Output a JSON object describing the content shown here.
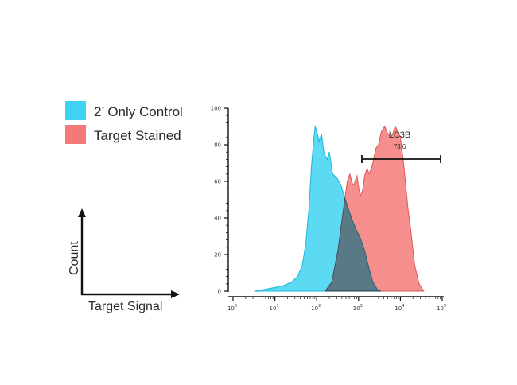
{
  "legend": [
    {
      "label": "2’ Only Control",
      "color": "#3fd3f1"
    },
    {
      "label": "Target Stained",
      "color": "#f47a7a"
    }
  ],
  "schematic": {
    "ylabel": "Count",
    "xlabel": "Target Signal"
  },
  "chart_data": {
    "type": "area",
    "xscale": "log",
    "xlim": [
      1,
      100000
    ],
    "ylim": [
      0,
      100
    ],
    "xticks": [
      {
        "base": "10",
        "exp": "0",
        "value": 1
      },
      {
        "base": "10",
        "exp": "1",
        "value": 10
      },
      {
        "base": "10",
        "exp": "2",
        "value": 100
      },
      {
        "base": "10",
        "exp": "3",
        "value": 1000
      },
      {
        "base": "10",
        "exp": "4",
        "value": 10000
      },
      {
        "base": "10",
        "exp": "5",
        "value": 100000
      }
    ],
    "yticks": [
      "0",
      "20",
      "40",
      "60",
      "80",
      "100"
    ],
    "series": [
      {
        "color": "#3fd3f1",
        "points": [
          [
            3.2,
            0
          ],
          [
            6,
            1
          ],
          [
            10,
            2
          ],
          [
            16,
            3
          ],
          [
            25,
            5
          ],
          [
            35,
            8
          ],
          [
            45,
            14
          ],
          [
            55,
            26
          ],
          [
            65,
            45
          ],
          [
            75,
            68
          ],
          [
            85,
            83
          ],
          [
            92,
            90
          ],
          [
            100,
            87
          ],
          [
            115,
            82
          ],
          [
            130,
            86
          ],
          [
            150,
            75
          ],
          [
            180,
            72
          ],
          [
            200,
            76
          ],
          [
            240,
            64
          ],
          [
            300,
            62
          ],
          [
            380,
            58
          ],
          [
            450,
            52
          ],
          [
            550,
            46
          ],
          [
            700,
            39
          ],
          [
            900,
            33
          ],
          [
            1100,
            29
          ],
          [
            1400,
            22
          ],
          [
            1800,
            12
          ],
          [
            2200,
            5
          ],
          [
            2800,
            1
          ],
          [
            3400,
            0
          ]
        ]
      },
      {
        "color": "#f47a7a",
        "points": [
          [
            160,
            0
          ],
          [
            230,
            5
          ],
          [
            320,
            22
          ],
          [
            420,
            42
          ],
          [
            540,
            60
          ],
          [
            620,
            64
          ],
          [
            700,
            59
          ],
          [
            780,
            58
          ],
          [
            850,
            61
          ],
          [
            920,
            63
          ],
          [
            1000,
            57
          ],
          [
            1100,
            52
          ],
          [
            1250,
            55
          ],
          [
            1400,
            63
          ],
          [
            1600,
            67
          ],
          [
            1800,
            64
          ],
          [
            2200,
            70
          ],
          [
            2600,
            78
          ],
          [
            3000,
            80
          ],
          [
            3500,
            87
          ],
          [
            4200,
            90
          ],
          [
            5000,
            86
          ],
          [
            5800,
            84
          ],
          [
            6600,
            86
          ],
          [
            7500,
            90
          ],
          [
            8500,
            88
          ],
          [
            10000,
            84
          ],
          [
            12000,
            69
          ],
          [
            13500,
            57
          ],
          [
            15000,
            46
          ],
          [
            17500,
            34
          ],
          [
            22000,
            14
          ],
          [
            28000,
            4
          ],
          [
            36000,
            0
          ]
        ]
      }
    ],
    "gate": {
      "label": "LC3B",
      "value": "73.6",
      "x_start": 1200,
      "x_end": 100000,
      "y": 70
    }
  }
}
